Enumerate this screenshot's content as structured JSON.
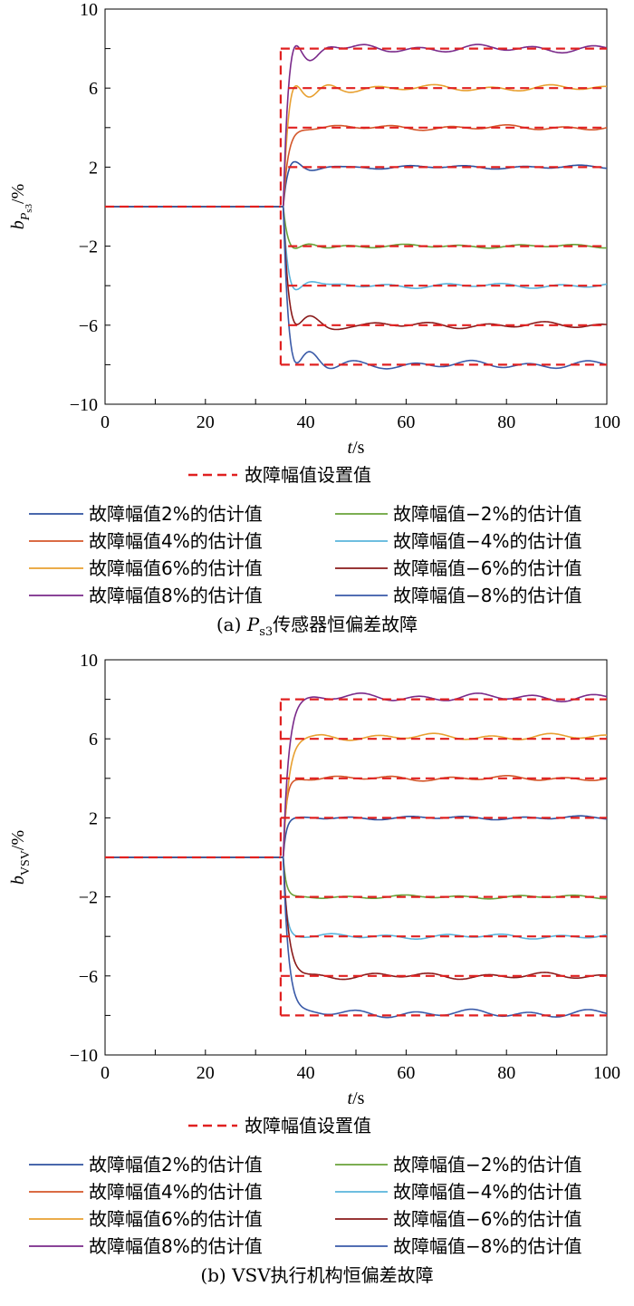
{
  "panels": [
    {
      "id": "a",
      "caption": "(a) Ps3传感器恒偏差故障",
      "caption_parts": {
        "prefix": "(a)",
        "symbol": "P",
        "subscript": "s3",
        "suffix": "传感器恒偏差故障"
      },
      "ylabel": {
        "symbol": "b",
        "sub_symbol": "P",
        "sub_sub": "s3",
        "unit": "/%"
      },
      "xlabel": {
        "symbol": "t",
        "unit": "/s"
      },
      "legend": {
        "setpoint": "故障幅值设置值",
        "left": [
          "故障幅值2%的估计值",
          "故障幅值4%的估计值",
          "故障幅值6%的估计值",
          "故障幅值8%的估计值"
        ],
        "right": [
          "故障幅值−2%的估计值",
          "故障幅值−4%的估计值",
          "故障幅值−6%的估计值",
          "故障幅值−8%的估计值"
        ]
      },
      "xticks": [
        "0",
        "20",
        "40",
        "60",
        "80",
        "100"
      ],
      "yticks": [
        "10",
        "6",
        "2",
        "−2",
        "−6",
        "−10"
      ]
    },
    {
      "id": "b",
      "caption": "(b) VSV执行机构恒偏差故障",
      "ylabel": {
        "symbol": "b",
        "sub": "VSV",
        "unit": "/%"
      },
      "xlabel": {
        "symbol": "t",
        "unit": "/s"
      },
      "legend": {
        "setpoint": "故障幅值设置值",
        "left": [
          "故障幅值2%的估计值",
          "故障幅值4%的估计值",
          "故障幅值6%的估计值",
          "故障幅值8%的估计值"
        ],
        "right": [
          "故障幅值−2%的估计值",
          "故障幅值−4%的估计值",
          "故障幅值−6%的估计值",
          "故障幅值−8%的估计值"
        ]
      },
      "xticks": [
        "0",
        "20",
        "40",
        "60",
        "80",
        "100"
      ],
      "yticks": [
        "10",
        "6",
        "2",
        "−2",
        "−6",
        "−10"
      ]
    }
  ],
  "colors": {
    "setpoint": "#e02020",
    "est_2": "#2f52a0",
    "est_4": "#d4562a",
    "est_6": "#e8a030",
    "est_8": "#7a2a8a",
    "est_m2": "#6aa33a",
    "est_m4": "#5ab4dc",
    "est_m6": "#8a1a1a",
    "est_m8": "#3a5aa8"
  },
  "chart_data": [
    {
      "type": "line",
      "title": "(a) Ps3传感器恒偏差故障",
      "xlabel": "t/s",
      "ylabel": "bPs3/%",
      "xlim": [
        0,
        100
      ],
      "ylim": [
        -10,
        10
      ],
      "fault_time": 35,
      "series": [
        {
          "name": "故障幅值设置值",
          "style": "dashed",
          "x": [
            0,
            35,
            35,
            100
          ],
          "values": [
            0,
            0,
            8,
            8
          ],
          "levels": [
            8,
            6,
            4,
            2,
            -2,
            -4,
            -6,
            -8
          ]
        },
        {
          "name": "故障幅值2%的估计值",
          "target": 2,
          "peak": 2.4,
          "peak_time": 37.5,
          "settled": 2.0
        },
        {
          "name": "故障幅值4%的估计值",
          "target": 4,
          "settled": 4.0
        },
        {
          "name": "故障幅值6%的估计值",
          "target": 6,
          "peak": 7.0,
          "peak_time": 39,
          "settled": 6.0
        },
        {
          "name": "故障幅值8%的估计值",
          "target": 8,
          "peak": 9.3,
          "peak_time": 39.5,
          "settled": 8.0
        },
        {
          "name": "故障幅值−2%的估计值",
          "target": -2,
          "peak": -2.3,
          "peak_time": 37,
          "settled": -2.0
        },
        {
          "name": "故障幅值−4%的估计值",
          "target": -4,
          "peak": -4.5,
          "peak_time": 39,
          "settled": -4.0
        },
        {
          "name": "故障幅值−6%的估计值",
          "target": -6,
          "peak": -6.8,
          "peak_time": 39,
          "settled": -6.0
        },
        {
          "name": "故障幅值−8%的估计值",
          "target": -8,
          "peak": -9.1,
          "peak_time": 39.5,
          "settled": -8.0
        }
      ]
    },
    {
      "type": "line",
      "title": "(b) VSV执行机构恒偏差故障",
      "xlabel": "t/s",
      "ylabel": "bVSV/%",
      "xlim": [
        0,
        100
      ],
      "ylim": [
        -10,
        10
      ],
      "fault_time": 35,
      "series": [
        {
          "name": "故障幅值设置值",
          "style": "dashed",
          "levels": [
            8,
            6,
            4,
            2,
            -2,
            -4,
            -6,
            -8
          ]
        },
        {
          "name": "故障幅值2%的估计值",
          "target": 2,
          "settled": 2.0
        },
        {
          "name": "故障幅值4%的估计值",
          "target": 4,
          "settled": 4.0
        },
        {
          "name": "故障幅值6%的估计值",
          "target": 6,
          "settled": 6.1
        },
        {
          "name": "故障幅值8%的估计值",
          "target": 8,
          "settled": 8.1
        },
        {
          "name": "故障幅值−2%的估计值",
          "target": -2,
          "settled": -2.0
        },
        {
          "name": "故障幅值−4%的估计值",
          "target": -4,
          "settled": -4.0
        },
        {
          "name": "故障幅值−6%的估计值",
          "target": -6,
          "settled": -6.0
        },
        {
          "name": "故障幅值−8%的估计值",
          "target": -8,
          "settled": -7.9
        }
      ]
    }
  ]
}
